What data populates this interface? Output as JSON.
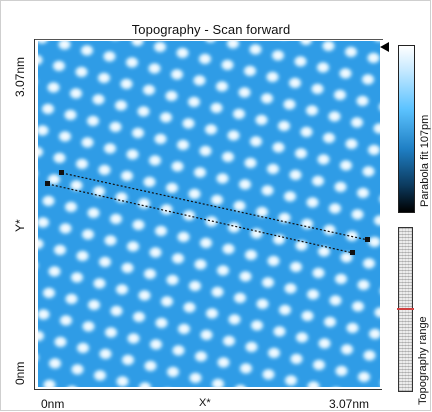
{
  "plot": {
    "title": "Topography - Scan forward",
    "y_axis": {
      "max_label": "3.07nm",
      "min_label": "0nm",
      "name": "Y*"
    },
    "x_axis": {
      "min_label": "0nm",
      "max_label": "3.07nm",
      "name": "X*"
    }
  },
  "colorbar": {
    "label": "Parabola fit 107pm",
    "colors": [
      "#ffffff",
      "#c9eaff",
      "#5cc3ff",
      "#1f7fc4",
      "#0c3a5e",
      "#000000"
    ]
  },
  "range_bar": {
    "label": "Topography range",
    "marker_color": "#d04040"
  },
  "lattice": {
    "background_color": "#2f9ce6",
    "atom_color": "#e9f8ff",
    "highlight_color": "#ffffff"
  },
  "markers": {
    "lines_color": "#111111",
    "line_style": "dotted"
  }
}
